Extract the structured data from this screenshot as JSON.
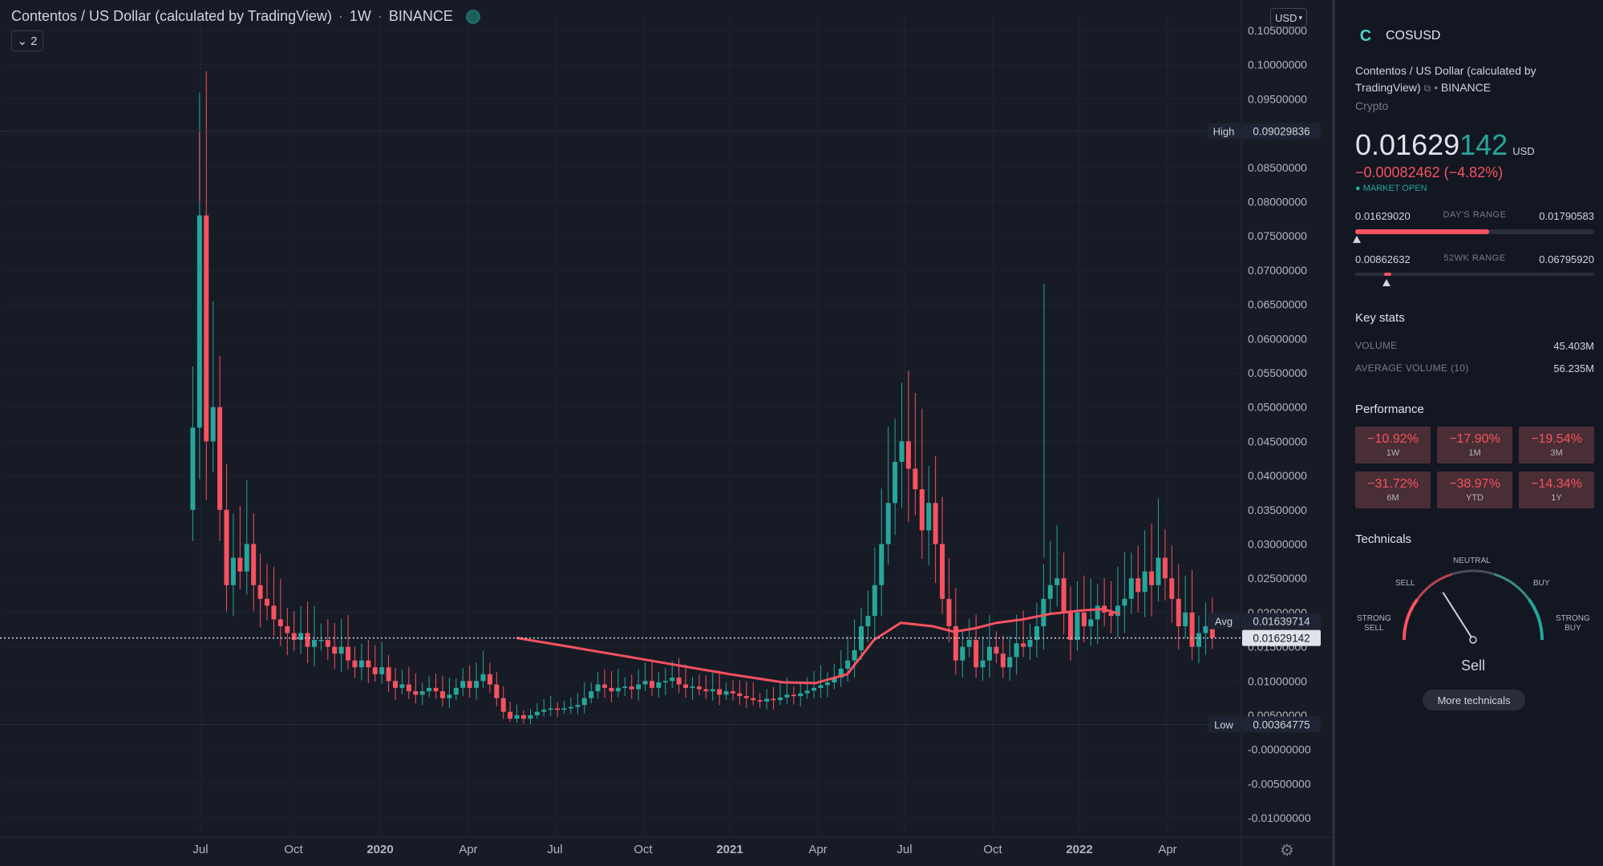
{
  "header": {
    "title": "Contentos / US Dollar (calculated by TradingView)",
    "interval": "1W",
    "exchange": "BINANCE",
    "collapse_label": "2",
    "currency": "USD"
  },
  "price_scale": {
    "ticks": [
      "0.10500000",
      "0.10000000",
      "0.09500000",
      "0.08500000",
      "0.08000000",
      "0.07500000",
      "0.07000000",
      "0.06500000",
      "0.06000000",
      "0.05500000",
      "0.05000000",
      "0.04500000",
      "0.04000000",
      "0.03500000",
      "0.03000000",
      "0.02500000",
      "0.02000000",
      "0.01500000",
      "0.01000000",
      "0.00500000",
      "-0.00000000",
      "-0.00500000",
      "-0.01000000"
    ],
    "high_label": "High",
    "high_value": "0.09029836",
    "avg_label": "Avg",
    "avg_value": "0.01639714",
    "last_value": "0.01629142",
    "low_label": "Low",
    "low_value": "0.00364775"
  },
  "time_axis": [
    "Jul",
    "Oct",
    "2020",
    "Apr",
    "Jul",
    "Oct",
    "2021",
    "Apr",
    "Jul",
    "Oct",
    "2022",
    "Apr"
  ],
  "colors": {
    "up": "#26a69a",
    "down": "#f7525f",
    "ma": "#f7525f",
    "bg": "#171b26"
  },
  "chart_data": {
    "type": "candlestick",
    "title": "Contentos / US Dollar (calculated by TradingView)",
    "interval": "1W",
    "ylim": [
      -0.0115,
      0.106
    ],
    "high": 0.09029836,
    "low": 0.00364775,
    "last": 0.01629142,
    "avg": 0.01639714,
    "x_ticks": [
      "Jul",
      "Oct",
      "2020",
      "Apr",
      "Jul",
      "Oct",
      "2021",
      "Apr",
      "Jul",
      "Oct",
      "2022",
      "Apr"
    ],
    "ma_series": [
      [
        0,
        0.0163
      ],
      [
        10,
        0.015
      ],
      [
        25,
        0.013
      ],
      [
        40,
        0.011
      ],
      [
        50,
        0.0098
      ],
      [
        56,
        0.0097
      ],
      [
        62,
        0.011
      ],
      [
        67,
        0.016
      ],
      [
        72,
        0.0185
      ],
      [
        78,
        0.018
      ],
      [
        82,
        0.0172
      ],
      [
        86,
        0.0177
      ],
      [
        90,
        0.0185
      ],
      [
        95,
        0.019
      ],
      [
        100,
        0.0198
      ],
      [
        106,
        0.0203
      ],
      [
        110,
        0.0205
      ],
      [
        113,
        0.0198
      ]
    ]
  },
  "panel": {
    "ticker": "COSUSD",
    "logo": "C",
    "description": "Contentos / US Dollar (calculated by TradingView)",
    "exchange": "BINANCE",
    "category": "Crypto",
    "price_main": "0.01629",
    "price_tail": "142",
    "price_unit": "USD",
    "change": "−0.00082462 (−4.82%)",
    "market_status": "● MARKET OPEN",
    "days_range": {
      "low": "0.01629020",
      "label": "DAY'S RANGE",
      "high": "0.01790583",
      "fill_fraction": 0.56,
      "marker_fraction": 0.0
    },
    "wk52_range": {
      "low": "0.00862632",
      "label": "52WK RANGE",
      "high": "0.06795920",
      "fill_from": 0.12,
      "fill_to": 0.15,
      "marker_fraction": 0.13
    },
    "key_stats_title": "Key stats",
    "volume_label": "VOLUME",
    "volume_value": "45.403M",
    "avg_volume_label": "AVERAGE VOLUME (10)",
    "avg_volume_value": "56.235M",
    "performance_title": "Performance",
    "performance": [
      {
        "value": "−10.92%",
        "label": "1W"
      },
      {
        "value": "−17.90%",
        "label": "1M"
      },
      {
        "value": "−19.54%",
        "label": "3M"
      },
      {
        "value": "−31.72%",
        "label": "6M"
      },
      {
        "value": "−38.97%",
        "label": "YTD"
      },
      {
        "value": "−14.34%",
        "label": "1Y"
      }
    ],
    "technicals_title": "Technicals",
    "gauge": {
      "neutral": "NEUTRAL",
      "sell": "SELL",
      "buy": "BUY",
      "strong_sell": "STRONG\nSELL",
      "strong_buy": "STRONG\nBUY",
      "needle_position": 0.32
    },
    "verdict": "Sell",
    "more_button": "More technicals"
  }
}
